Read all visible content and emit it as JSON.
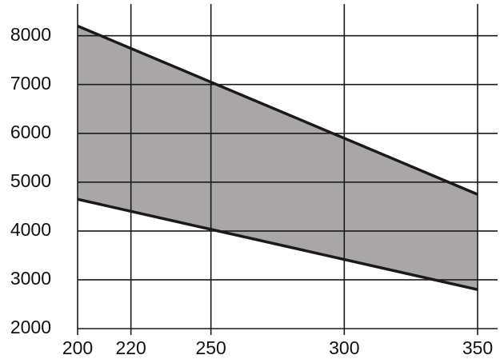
{
  "chart_data": {
    "type": "band",
    "x": [
      200,
      350
    ],
    "upper": [
      8200,
      4750
    ],
    "lower": [
      4650,
      2800
    ],
    "color": "#a8a6a7",
    "line_color": "#1a1a1a",
    "xlim": [
      200,
      350
    ],
    "xticks": [
      200,
      220,
      250,
      300,
      350
    ],
    "ylim": [
      2000,
      8650
    ],
    "yticks": [
      2000,
      3000,
      4000,
      5000,
      6000,
      7000,
      8000
    ],
    "grid": true
  }
}
